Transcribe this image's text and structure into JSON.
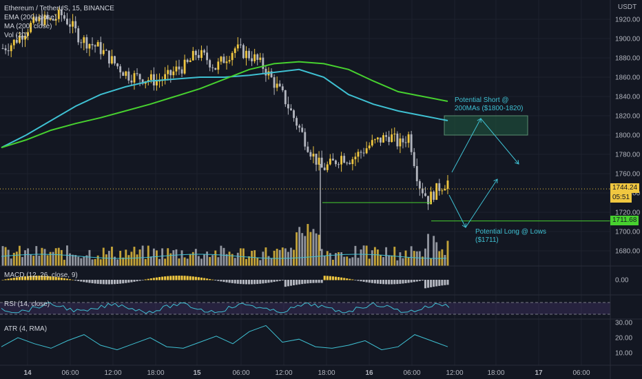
{
  "header": {
    "symbol": "Ethereum / TetherUS, 15, BINANCE",
    "indicators": [
      "EMA (200, close)",
      "MA (200, close)",
      "Vol (20)"
    ]
  },
  "panes": {
    "macd_label": "MACD (12, 26, close, 9)",
    "rsi_label": "RSI (14, close)",
    "atr_label": "ATR (4, RMA)"
  },
  "currency": "USDT",
  "price_tag": {
    "value": "1744.24",
    "countdown": "05:51"
  },
  "low_tag": "1711.68",
  "annotations": {
    "short": [
      "Potential Short @",
      "200MAs ($1800-1820)"
    ],
    "long": [
      "Potential Long @ Lows",
      "($1711)"
    ]
  },
  "colors": {
    "bg": "#131722",
    "up": "#f0c740",
    "down": "#b2b5be",
    "ema": "#3fc1d3",
    "ma": "#47d12f",
    "zone": "#1d4a3a",
    "rsi": "#7e57c2"
  },
  "chart_data": {
    "type": "line",
    "title": "Ethereum / TetherUS, 15, BINANCE",
    "xlabel": "",
    "ylabel": "USDT",
    "x_ticks": [
      "14",
      "06:00",
      "12:00",
      "18:00",
      "15",
      "06:00",
      "12:00",
      "18:00",
      "16",
      "06:00",
      "12:00",
      "18:00",
      "17",
      "06:00"
    ],
    "y_ticks": [
      1920,
      1900,
      1880,
      1860,
      1840,
      1820,
      1800,
      1780,
      1760,
      1740,
      1720,
      1700,
      1680
    ],
    "ylim": [
      1670,
      1930
    ],
    "price_close": [
      1890,
      1895,
      1905,
      1915,
      1920,
      1918,
      1925,
      1915,
      1900,
      1895,
      1890,
      1880,
      1870,
      1862,
      1860,
      1858,
      1856,
      1860,
      1868,
      1872,
      1885,
      1880,
      1870,
      1880,
      1890,
      1885,
      1880,
      1870,
      1855,
      1840,
      1820,
      1800,
      1780,
      1765,
      1770,
      1778,
      1775,
      1782,
      1790,
      1795,
      1800,
      1790,
      1800,
      1750,
      1733,
      1745,
      1752
    ],
    "series": [
      {
        "name": "EMA (200, close)",
        "values": [
          1787,
          1800,
          1815,
          1830,
          1842,
          1850,
          1856,
          1858,
          1860,
          1860,
          1862,
          1865,
          1868,
          1860,
          1842,
          1832,
          1825,
          1820,
          1815
        ]
      },
      {
        "name": "MA (200, close)",
        "values": [
          1787,
          1795,
          1805,
          1812,
          1818,
          1825,
          1832,
          1840,
          1848,
          1858,
          1868,
          1874,
          1876,
          1874,
          1868,
          1856,
          1845,
          1840,
          1835
        ]
      }
    ],
    "zone": {
      "label": "Potential Short @ 200MAs ($1800-1820)",
      "y_range": [
        1800,
        1820
      ]
    },
    "support": {
      "label": "Potential Long @ Lows ($1711)",
      "value": 1711
    },
    "last_price": 1744.24,
    "macd": {
      "label": "MACD (12, 26, close, 9)",
      "y_ticks": [
        0.0
      ]
    },
    "rsi": {
      "label": "RSI (14, close)"
    },
    "atr": {
      "label": "ATR (4, RMA)",
      "y_ticks": [
        30.0,
        20.0,
        10.0
      ],
      "values": [
        14,
        20,
        16,
        13,
        18,
        22,
        15,
        12,
        16,
        20,
        14,
        13,
        17,
        21,
        16,
        24,
        28,
        17,
        19,
        14,
        13,
        15,
        18,
        12,
        14,
        22,
        18,
        14
      ]
    }
  }
}
